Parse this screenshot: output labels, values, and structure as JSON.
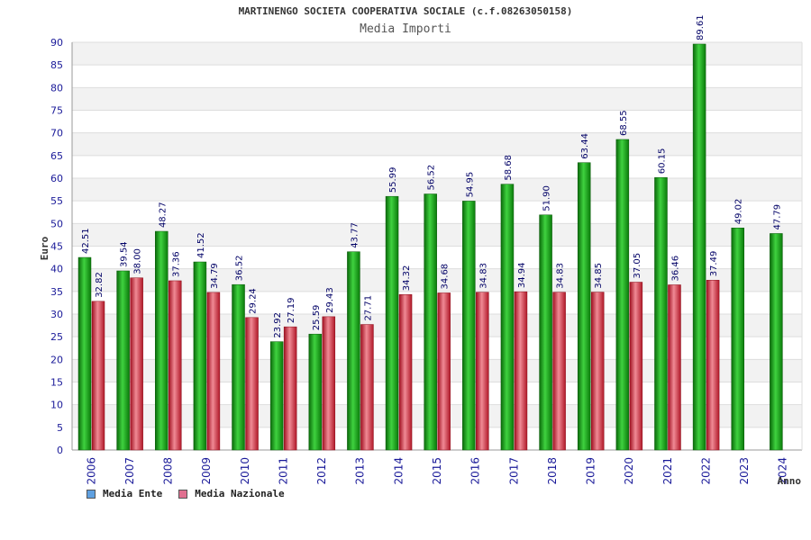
{
  "chart_data": {
    "type": "bar",
    "title": "MARTINENGO SOCIETA COOPERATIVA SOCIALE (c.f.08263050158)",
    "subtitle": "Media Importi",
    "xlabel": "Anno",
    "ylabel": "Euro",
    "ylim": [
      0,
      90
    ],
    "yticks": [
      0,
      5,
      10,
      15,
      20,
      25,
      30,
      35,
      40,
      45,
      50,
      55,
      60,
      65,
      70,
      75,
      80,
      85,
      90
    ],
    "grid": true,
    "legend_position": "bottom-left",
    "categories": [
      "2006",
      "2007",
      "2008",
      "2009",
      "2010",
      "2011",
      "2012",
      "2013",
      "2014",
      "2015",
      "2016",
      "2017",
      "2018",
      "2019",
      "2020",
      "2021",
      "2022",
      "2023",
      "2024"
    ],
    "series": [
      {
        "name": "Media Ente",
        "color": "#1a9e1a",
        "legend_color": "#5fa0e0",
        "values": [
          42.51,
          39.54,
          48.27,
          41.52,
          36.52,
          23.92,
          25.59,
          43.77,
          55.99,
          56.52,
          54.95,
          58.68,
          51.9,
          63.44,
          68.55,
          60.15,
          89.61,
          49.02,
          47.79
        ],
        "labels": [
          "42.51",
          "39.54",
          "48.27",
          "41.52",
          "36.52",
          "23.92",
          "25.59",
          "43.77",
          "55.99",
          "56.52",
          "54.95",
          "58.68",
          "51.90",
          "63.44",
          "68.55",
          "60.15",
          "89.61",
          "49.02",
          "47.79"
        ]
      },
      {
        "name": "Media Nazionale",
        "color": "#dd2a3a",
        "legend_color": "#e07090",
        "values": [
          32.82,
          38.0,
          37.36,
          34.79,
          29.24,
          27.19,
          29.43,
          27.71,
          34.32,
          34.68,
          34.83,
          34.94,
          34.83,
          34.85,
          37.05,
          36.46,
          37.49,
          null,
          null
        ],
        "labels": [
          "32.82",
          "38.00",
          "37.36",
          "34.79",
          "29.24",
          "27.19",
          "29.43",
          "27.71",
          "34.32",
          "34.68",
          "34.83",
          "34.94",
          "34.83",
          "34.85",
          "37.05",
          "36.46",
          "37.49",
          "",
          ""
        ]
      }
    ]
  }
}
